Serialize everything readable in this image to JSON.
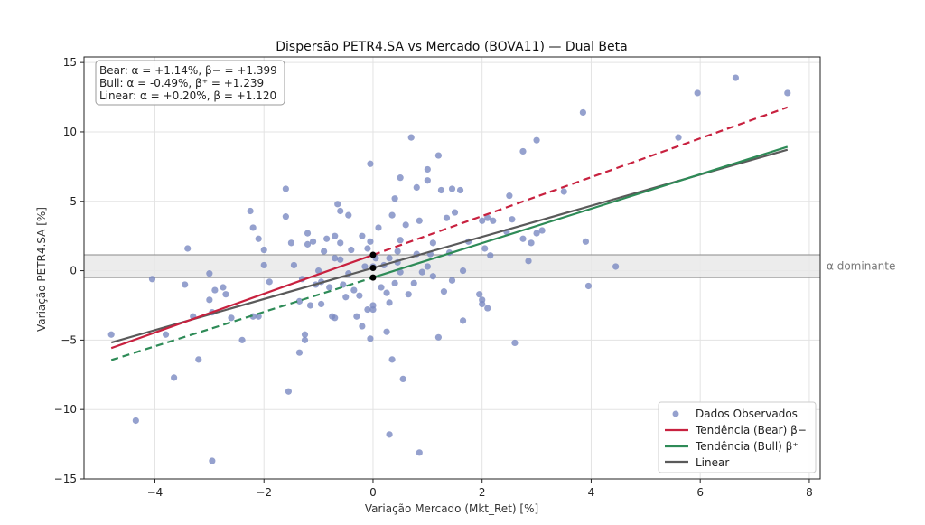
{
  "chart_data": {
    "type": "scatter",
    "title": "Dispersão PETR4.SA vs Mercado (BOVA11) — Dual Beta",
    "xlabel": "Variação Mercado (Mkt_Ret) [%]",
    "ylabel": "Variação PETR4.SA [%]",
    "xlim": [
      -5.3,
      8.2
    ],
    "ylim": [
      -15,
      15.4
    ],
    "xticks": [
      -4,
      -2,
      0,
      2,
      4,
      6,
      8
    ],
    "yticks": [
      -15,
      -10,
      -5,
      0,
      5,
      10,
      15
    ],
    "xtick_labels": [
      "−4",
      "−2",
      "0",
      "2",
      "4",
      "6",
      "8"
    ],
    "ytick_labels": [
      "−15",
      "−10",
      "−5",
      "0",
      "5",
      "10",
      "15"
    ],
    "grid": true,
    "legend_position": "lower-right",
    "annotation_lines": [
      "Bear: α = +1.14%, β− = +1.399",
      "Bull: α = -0.49%, β⁺ = +1.239",
      "Linear: α = +0.20%, β = +1.120"
    ],
    "band": {
      "y_low": -0.49,
      "y_high": 1.14,
      "label": "α dominante"
    },
    "legend": [
      {
        "key": "points",
        "label": "Dados Observados"
      },
      {
        "key": "bear",
        "label": "Tendência (Bear) β−"
      },
      {
        "key": "bull",
        "label": "Tendência (Bull) β⁺"
      },
      {
        "key": "linear",
        "label": "Linear"
      }
    ],
    "colors": {
      "points": "#7b89c2",
      "bear": "#c8213f",
      "bull": "#2e8b57",
      "linear": "#5a5a5a",
      "band": "#e9e9e9"
    },
    "lines": {
      "bear": {
        "alpha": 1.14,
        "beta": 1.399,
        "x_solid": [
          -4.8,
          0
        ],
        "x_dashed": [
          0,
          7.6
        ]
      },
      "bull": {
        "alpha": -0.49,
        "beta": 1.239,
        "x_dashed": [
          -4.8,
          0
        ],
        "x_solid": [
          0,
          7.6
        ]
      },
      "linear": {
        "alpha": 0.2,
        "beta": 1.12,
        "x": [
          -4.8,
          7.6
        ]
      }
    },
    "intercept_points": [
      {
        "x": 0,
        "y": 1.14
      },
      {
        "x": 0,
        "y": 0.2
      },
      {
        "x": 0,
        "y": -0.49
      }
    ],
    "points": [
      [
        -4.8,
        -4.6
      ],
      [
        -4.35,
        -10.8
      ],
      [
        -4.05,
        -0.6
      ],
      [
        -3.8,
        -4.6
      ],
      [
        -3.65,
        -7.7
      ],
      [
        -3.4,
        1.6
      ],
      [
        -3.45,
        -1.0
      ],
      [
        -3.3,
        -3.3
      ],
      [
        -3.2,
        -6.4
      ],
      [
        -3.0,
        -0.2
      ],
      [
        -3.0,
        -2.1
      ],
      [
        -2.95,
        -3.0
      ],
      [
        -2.95,
        -13.7
      ],
      [
        -2.9,
        -1.4
      ],
      [
        -2.75,
        -1.2
      ],
      [
        -2.7,
        -1.7
      ],
      [
        -2.6,
        -3.4
      ],
      [
        -2.4,
        -5.0
      ],
      [
        -2.25,
        4.3
      ],
      [
        -2.2,
        3.1
      ],
      [
        -2.2,
        -3.3
      ],
      [
        -2.1,
        -3.3
      ],
      [
        -2.1,
        2.3
      ],
      [
        -2.0,
        0.4
      ],
      [
        -2.0,
        1.5
      ],
      [
        -1.9,
        -0.8
      ],
      [
        -1.6,
        5.9
      ],
      [
        -1.6,
        3.9
      ],
      [
        -1.55,
        -8.7
      ],
      [
        -1.5,
        2.0
      ],
      [
        -1.45,
        0.4
      ],
      [
        -1.35,
        -2.2
      ],
      [
        -1.35,
        -5.9
      ],
      [
        -1.3,
        -0.6
      ],
      [
        -1.25,
        -4.6
      ],
      [
        -1.25,
        -5.0
      ],
      [
        -1.2,
        2.7
      ],
      [
        -1.2,
        1.9
      ],
      [
        -1.15,
        -2.5
      ],
      [
        -1.1,
        2.1
      ],
      [
        -1.05,
        -1.0
      ],
      [
        -1.0,
        0.0
      ],
      [
        -0.95,
        -2.4
      ],
      [
        -0.95,
        -0.8
      ],
      [
        -0.9,
        1.4
      ],
      [
        -0.85,
        2.3
      ],
      [
        -0.8,
        -1.2
      ],
      [
        -0.75,
        -3.3
      ],
      [
        -0.7,
        2.5
      ],
      [
        -0.7,
        0.9
      ],
      [
        -0.7,
        -3.4
      ],
      [
        -0.65,
        4.8
      ],
      [
        -0.6,
        4.3
      ],
      [
        -0.6,
        2.0
      ],
      [
        -0.6,
        0.8
      ],
      [
        -0.55,
        -1.0
      ],
      [
        -0.5,
        -1.9
      ],
      [
        -0.45,
        4.0
      ],
      [
        -0.45,
        -0.2
      ],
      [
        -0.4,
        1.5
      ],
      [
        -0.35,
        -1.4
      ],
      [
        -0.3,
        -3.3
      ],
      [
        -0.25,
        -1.8
      ],
      [
        -0.2,
        -4.0
      ],
      [
        -0.2,
        2.5
      ],
      [
        -0.15,
        0.3
      ],
      [
        -0.1,
        -2.8
      ],
      [
        -0.1,
        1.6
      ],
      [
        -0.05,
        7.7
      ],
      [
        -0.05,
        -4.9
      ],
      [
        -0.05,
        2.1
      ],
      [
        0.0,
        -2.5
      ],
      [
        0.0,
        -2.8
      ],
      [
        0.0,
        0.3
      ],
      [
        0.05,
        0.9
      ],
      [
        0.1,
        3.1
      ],
      [
        0.15,
        -1.2
      ],
      [
        0.2,
        0.4
      ],
      [
        0.25,
        -4.4
      ],
      [
        0.25,
        -1.6
      ],
      [
        0.3,
        -2.3
      ],
      [
        0.3,
        0.9
      ],
      [
        0.3,
        -11.8
      ],
      [
        0.35,
        4.0
      ],
      [
        0.35,
        -6.4
      ],
      [
        0.4,
        5.2
      ],
      [
        0.4,
        -0.9
      ],
      [
        0.45,
        1.4
      ],
      [
        0.45,
        0.6
      ],
      [
        0.5,
        2.2
      ],
      [
        0.5,
        6.7
      ],
      [
        0.5,
        -0.1
      ],
      [
        0.55,
        -7.8
      ],
      [
        0.6,
        3.3
      ],
      [
        0.65,
        -1.7
      ],
      [
        0.7,
        9.6
      ],
      [
        0.75,
        -0.9
      ],
      [
        0.8,
        1.2
      ],
      [
        0.8,
        6.0
      ],
      [
        0.85,
        -13.1
      ],
      [
        0.85,
        3.6
      ],
      [
        0.9,
        -0.1
      ],
      [
        1.0,
        6.5
      ],
      [
        1.0,
        7.3
      ],
      [
        1.0,
        0.3
      ],
      [
        1.05,
        1.2
      ],
      [
        1.1,
        2.0
      ],
      [
        1.1,
        -0.4
      ],
      [
        1.2,
        -4.8
      ],
      [
        1.2,
        8.3
      ],
      [
        1.25,
        5.8
      ],
      [
        1.3,
        -1.5
      ],
      [
        1.35,
        3.8
      ],
      [
        1.4,
        1.3
      ],
      [
        1.45,
        5.9
      ],
      [
        1.45,
        -0.7
      ],
      [
        1.5,
        4.2
      ],
      [
        1.6,
        5.8
      ],
      [
        1.65,
        0.0
      ],
      [
        1.65,
        -3.6
      ],
      [
        1.75,
        2.1
      ],
      [
        1.95,
        -1.7
      ],
      [
        2.0,
        -2.1
      ],
      [
        2.0,
        -2.4
      ],
      [
        2.0,
        3.6
      ],
      [
        2.05,
        1.6
      ],
      [
        2.1,
        3.8
      ],
      [
        2.1,
        -2.7
      ],
      [
        2.15,
        1.1
      ],
      [
        2.2,
        3.6
      ],
      [
        2.45,
        2.8
      ],
      [
        2.5,
        5.4
      ],
      [
        2.55,
        3.7
      ],
      [
        2.6,
        -5.2
      ],
      [
        2.75,
        8.6
      ],
      [
        2.75,
        2.3
      ],
      [
        2.85,
        0.7
      ],
      [
        2.9,
        2.0
      ],
      [
        3.0,
        9.4
      ],
      [
        3.0,
        2.7
      ],
      [
        3.1,
        2.9
      ],
      [
        3.5,
        5.7
      ],
      [
        3.85,
        11.4
      ],
      [
        3.9,
        2.1
      ],
      [
        3.95,
        -1.1
      ],
      [
        4.45,
        0.3
      ],
      [
        5.6,
        9.6
      ],
      [
        5.95,
        12.8
      ],
      [
        6.65,
        13.9
      ],
      [
        7.6,
        12.8
      ]
    ]
  }
}
